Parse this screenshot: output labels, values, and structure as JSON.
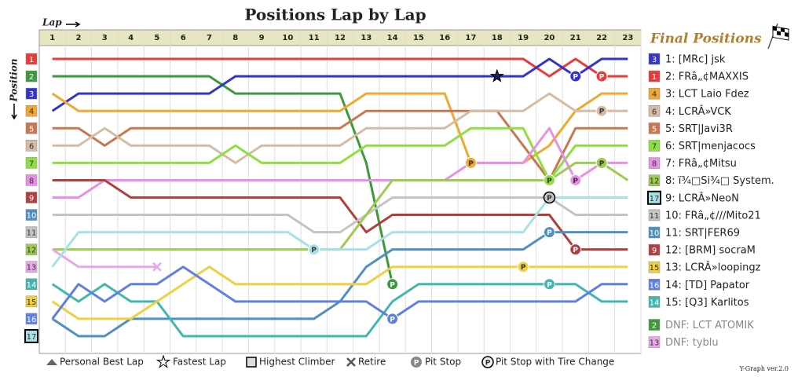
{
  "chart_data": {
    "type": "line",
    "title": "Positions Lap by Lap",
    "x_label": "Lap",
    "y_label": "Position",
    "x": [
      1,
      2,
      3,
      4,
      5,
      6,
      7,
      8,
      9,
      10,
      11,
      12,
      13,
      14,
      15,
      16,
      17,
      18,
      19,
      20,
      21,
      22,
      23
    ],
    "xlim": [
      0.5,
      23.5
    ],
    "ylim": [
      0.5,
      17.5
    ],
    "y_inverted": true,
    "yticks": [
      1,
      2,
      3,
      4,
      5,
      6,
      7,
      8,
      9,
      10,
      11,
      12,
      13,
      14,
      15,
      16,
      17
    ],
    "grid": true,
    "series": [
      {
        "name": "FRâ„¢MAXXIS",
        "color": "#e83c3c",
        "values": [
          1,
          1,
          1,
          1,
          1,
          1,
          1,
          1,
          1,
          1,
          1,
          1,
          1,
          1,
          1,
          1,
          1,
          1,
          1,
          2,
          1,
          2,
          2
        ]
      },
      {
        "name": "LCT ATOMIK",
        "color": "#3c9a3c",
        "values": [
          2,
          2,
          2,
          2,
          2,
          2,
          2,
          3,
          3,
          3,
          3,
          3,
          7,
          14,
          null,
          null,
          null,
          null,
          null,
          null,
          null,
          null,
          null
        ]
      },
      {
        "name": "[MRc] jsk",
        "color": "#3434c8",
        "values": [
          4,
          3,
          3,
          3,
          3,
          3,
          3,
          2,
          2,
          2,
          2,
          2,
          2,
          2,
          2,
          2,
          2,
          2,
          2,
          1,
          2,
          1,
          1
        ]
      },
      {
        "name": "LCT Laio Fdez",
        "color": "#f0a830",
        "values": [
          3,
          4,
          4,
          4,
          4,
          4,
          4,
          4,
          4,
          4,
          4,
          4,
          3,
          3,
          3,
          3,
          7,
          7,
          7,
          6,
          4,
          3,
          3
        ]
      },
      {
        "name": "SRT|Javi3R",
        "color": "#c87850",
        "values": [
          5,
          5,
          6,
          5,
          5,
          5,
          5,
          5,
          5,
          5,
          5,
          5,
          4,
          4,
          4,
          4,
          4,
          4,
          6,
          8,
          5,
          5,
          5
        ]
      },
      {
        "name": "LCRÂ»VCK",
        "color": "#d6bca4",
        "values": [
          6,
          6,
          5,
          6,
          6,
          6,
          6,
          7,
          6,
          6,
          6,
          6,
          5,
          5,
          5,
          5,
          4,
          4,
          4,
          3,
          4,
          4,
          4
        ]
      },
      {
        "name": "SRT|menjacocs",
        "color": "#8ee040",
        "values": [
          7,
          7,
          7,
          7,
          7,
          7,
          7,
          6,
          7,
          7,
          7,
          7,
          6,
          6,
          6,
          6,
          5,
          5,
          5,
          8,
          6,
          6,
          6
        ]
      },
      {
        "name": "FRâ„¢Mitsu",
        "color": "#e890e8",
        "values": [
          9,
          9,
          8,
          8,
          8,
          8,
          8,
          8,
          8,
          8,
          8,
          8,
          8,
          8,
          8,
          8,
          7,
          7,
          7,
          5,
          8,
          7,
          7
        ]
      },
      {
        "name": "[BRM] socraM",
        "color": "#b04040",
        "values": [
          8,
          8,
          8,
          9,
          9,
          9,
          9,
          9,
          9,
          9,
          9,
          9,
          11,
          10,
          10,
          10,
          10,
          10,
          10,
          10,
          12,
          12,
          12
        ]
      },
      {
        "name": "SRT|FER69",
        "color": "#5090c0",
        "values": [
          16,
          17,
          17,
          16,
          16,
          16,
          16,
          16,
          16,
          16,
          16,
          15,
          13,
          12,
          12,
          12,
          12,
          12,
          12,
          11,
          11,
          11,
          11
        ]
      },
      {
        "name": "FRâ„¢///Mito21",
        "color": "#c4c4c4",
        "values": [
          10,
          10,
          10,
          10,
          10,
          10,
          10,
          10,
          10,
          10,
          11,
          11,
          10,
          9,
          9,
          9,
          9,
          9,
          9,
          9,
          10,
          10,
          10
        ]
      },
      {
        "name": "ï¾□Si¾□ System.",
        "color": "#9ccd50",
        "values": [
          12,
          12,
          12,
          12,
          12,
          12,
          12,
          12,
          12,
          12,
          12,
          12,
          10,
          8,
          8,
          8,
          8,
          8,
          8,
          8,
          7,
          7,
          8
        ]
      },
      {
        "name": "tyblu",
        "color": "#e8a8e8",
        "values": [
          12,
          13,
          13,
          13,
          13,
          null,
          null,
          null,
          null,
          null,
          null,
          null,
          null,
          null,
          null,
          null,
          null,
          null,
          null,
          null,
          null,
          null,
          null
        ]
      },
      {
        "name": "[Q3] Karlitos",
        "color": "#40b8b0",
        "values": [
          14,
          15,
          14,
          15,
          15,
          17,
          17,
          17,
          17,
          17,
          17,
          17,
          17,
          15,
          14,
          14,
          14,
          14,
          14,
          14,
          14,
          15,
          15
        ]
      },
      {
        "name": "LCRÂ»loopingz",
        "color": "#f0d040",
        "values": [
          15,
          16,
          16,
          16,
          15,
          14,
          13,
          14,
          14,
          14,
          14,
          14,
          14,
          13,
          13,
          13,
          13,
          13,
          13,
          13,
          13,
          13,
          13
        ]
      },
      {
        "name": "[TD] Papator",
        "color": "#6080e0",
        "values": [
          16,
          14,
          15,
          14,
          14,
          13,
          14,
          15,
          15,
          15,
          15,
          15,
          15,
          16,
          15,
          15,
          15,
          15,
          15,
          15,
          15,
          14,
          14
        ]
      },
      {
        "name": "LCRÂ»NeoN",
        "color": "#a8e0e8",
        "values": [
          13,
          11,
          11,
          11,
          11,
          11,
          11,
          11,
          11,
          11,
          12,
          12,
          12,
          11,
          11,
          11,
          11,
          11,
          11,
          9,
          9,
          9,
          9
        ]
      }
    ],
    "pit_symbol": "P",
    "pit_stops": [
      {
        "series": 1,
        "lap": 14
      },
      {
        "series": 15,
        "lap": 14
      },
      {
        "series": 16,
        "lap": 11
      },
      {
        "series": 3,
        "lap": 17
      },
      {
        "series": 14,
        "lap": 19
      },
      {
        "series": 4,
        "lap": 20
      },
      {
        "series": 13,
        "lap": 20
      },
      {
        "series": 6,
        "lap": 20
      },
      {
        "series": 9,
        "lap": 20
      },
      {
        "series": 8,
        "lap": 21
      },
      {
        "series": 10,
        "lap": 20,
        "tire_change": true
      },
      {
        "series": 2,
        "lap": 21
      },
      {
        "series": 7,
        "lap": 21
      },
      {
        "series": 0,
        "lap": 22
      },
      {
        "series": 5,
        "lap": 22
      },
      {
        "series": 11,
        "lap": 22
      }
    ],
    "fastest_lap": {
      "series": 2,
      "lap": 18
    },
    "retire": {
      "series": 12,
      "lap": 5
    },
    "highest_climber": 17,
    "final_title": "Final Positions",
    "final_positions": [
      {
        "box": 3,
        "label": "1: [MRc] jsk"
      },
      {
        "box": 1,
        "label": "2: FRâ„¢MAXXIS"
      },
      {
        "box": 4,
        "label": "3: LCT Laio Fdez"
      },
      {
        "box": 6,
        "label": "4: LCRÂ»VCK"
      },
      {
        "box": 5,
        "label": "5: SRT|Javi3R"
      },
      {
        "box": 7,
        "label": "6: SRT|menjacocs"
      },
      {
        "box": 8,
        "label": "7: FRâ„¢Mitsu"
      },
      {
        "box": 12,
        "label": "8: ï¾□Si¾□ System."
      },
      {
        "box": 17,
        "label": "9: LCRÂ»NeoN"
      },
      {
        "box": 11,
        "label": "10: FRâ„¢///Mito21"
      },
      {
        "box": 10,
        "label": "11: SRT|FER69"
      },
      {
        "box": 9,
        "label": "12: [BRM] socraM"
      },
      {
        "box": 15,
        "label": "13: LCRÂ»loopingz"
      },
      {
        "box": 16,
        "label": "14: [TD] Papator"
      },
      {
        "box": 14,
        "label": "15: [Q3] Karlitos"
      },
      {
        "box": 2,
        "label": "DNF: LCT ATOMIK"
      },
      {
        "box": 13,
        "label": "DNF: tyblu"
      }
    ],
    "legend": [
      "Personal Best Lap",
      "Fastest Lap",
      "Highest Climber",
      "Retire",
      "Pit Stop",
      "Pit Stop with Tire Change"
    ],
    "version": "Y-Graph ver.2.0"
  }
}
